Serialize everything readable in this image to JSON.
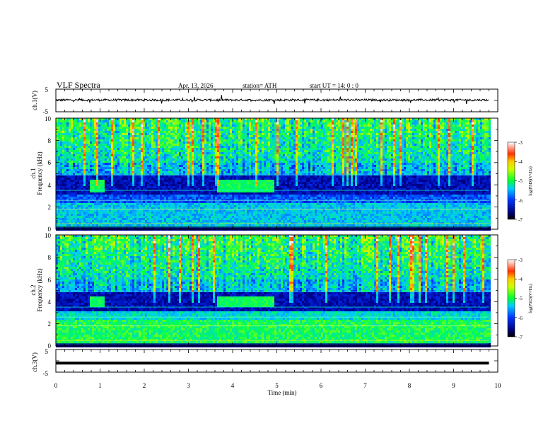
{
  "header": {
    "title": "VLF  Spectra",
    "date": "Apr. 13, 2026",
    "station": "station= ATH",
    "start": "start  UT  =   14: 0  : 0"
  },
  "chart_data": [
    {
      "type": "line",
      "id": "ch1-waveform",
      "ylabel": "ch.1(V)",
      "ylim": [
        -5,
        5
      ],
      "yticks": [
        "5",
        "-5"
      ],
      "xlim": [
        0,
        10
      ],
      "description_level": 0.2
    },
    {
      "type": "heatmap",
      "id": "ch1-spectrogram",
      "ylabel_channel": "ch.1",
      "ylabel": "Frequency  (kHz)",
      "ylim": [
        0,
        10
      ],
      "yticks": [
        "10",
        "8",
        "6",
        "4",
        "2",
        "0"
      ],
      "xlim": [
        0,
        9.8
      ],
      "colorbar": {
        "label": "log(PSD)(V²/Hz)",
        "ticks": [
          "-3",
          "-4",
          "-5",
          "-6",
          "-7"
        ],
        "range": [
          -7,
          -3
        ]
      },
      "bursts": [
        {
          "t0": 0.75,
          "t1": 1.08,
          "f0": 3.5,
          "f1": 4.6
        },
        {
          "t0": 3.6,
          "t1": 4.9,
          "f0": 3.5,
          "f1": 4.6
        }
      ]
    },
    {
      "type": "heatmap",
      "id": "ch2-spectrogram",
      "ylabel_channel": "ch.2",
      "ylabel": "Frequency  (kHz)",
      "ylim": [
        0,
        10
      ],
      "yticks": [
        "10",
        "8",
        "6",
        "4",
        "2",
        "0"
      ],
      "xlim": [
        0,
        9.8
      ],
      "colorbar": {
        "label": "log(PSD)(V²/Hz)",
        "ticks": [
          "-3",
          "-4",
          "-5",
          "-6",
          "-7"
        ],
        "range": [
          -7,
          -3
        ]
      },
      "bursts": [
        {
          "t0": 0.75,
          "t1": 1.08,
          "f0": 3.6,
          "f1": 4.6
        },
        {
          "t0": 3.6,
          "t1": 4.9,
          "f0": 3.6,
          "f1": 4.6
        }
      ]
    },
    {
      "type": "line",
      "id": "ch3-waveform",
      "ylabel": "ch.3(V)",
      "ylim": [
        -5,
        5
      ],
      "yticks": [
        "5",
        "-5"
      ],
      "xlim": [
        0,
        10
      ],
      "description_level": -1.0
    }
  ],
  "xaxis": {
    "label": "Time  (min)",
    "ticks": [
      "0",
      "1",
      "2",
      "3",
      "4",
      "5",
      "6",
      "7",
      "8",
      "9",
      "10"
    ],
    "range": [
      0,
      10
    ]
  }
}
